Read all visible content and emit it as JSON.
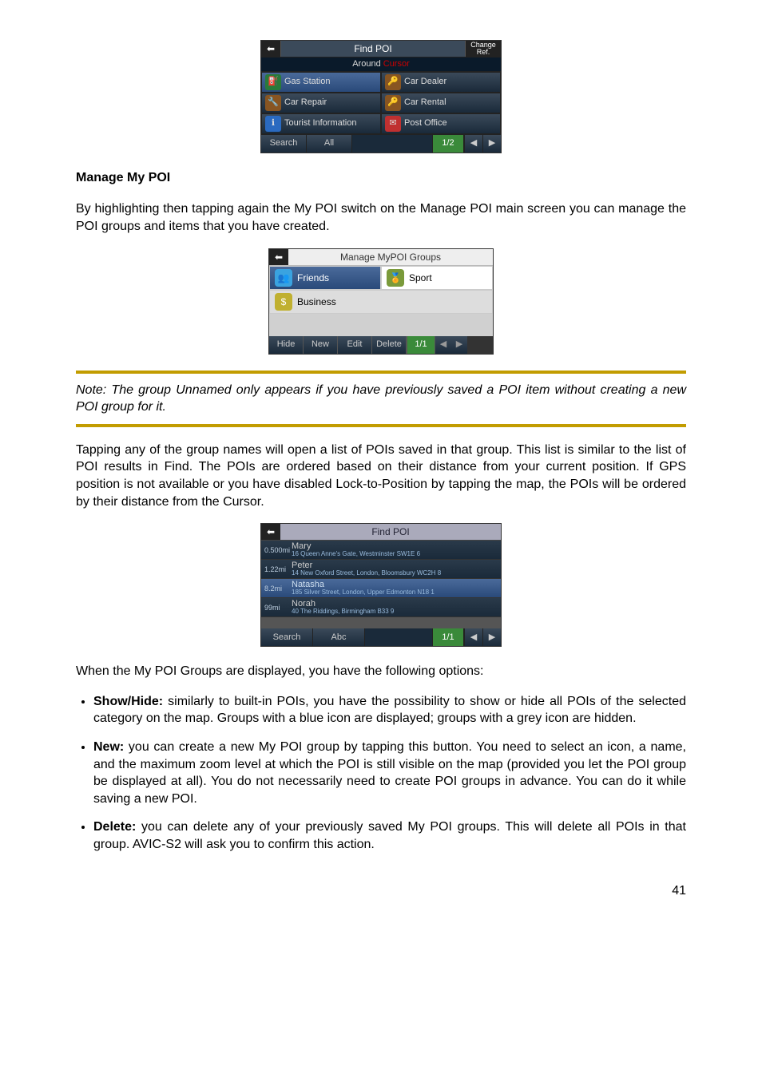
{
  "ss1": {
    "title": "Find POI",
    "change": "Change Ref.",
    "around_prefix": "Around ",
    "around_cursor": "Cursor",
    "cells": [
      {
        "label": "Gas Station",
        "icon_bg": "#2a7a3a",
        "icon_tx": "⛽",
        "selected": true
      },
      {
        "label": "Car Dealer",
        "icon_bg": "#885522",
        "icon_tx": "🔑"
      },
      {
        "label": "Car Repair",
        "icon_bg": "#885522",
        "icon_tx": "🔧"
      },
      {
        "label": "Car Rental",
        "icon_bg": "#885522",
        "icon_tx": "🔑"
      },
      {
        "label": "Tourist Information",
        "icon_bg": "#2a6ac0",
        "icon_tx": "ℹ"
      },
      {
        "label": "Post Office",
        "icon_bg": "#c03030",
        "icon_tx": "✉"
      }
    ],
    "btn_search": "Search",
    "btn_all": "All",
    "pager": "1/2"
  },
  "heading": "Manage My POI",
  "para1": "By highlighting then tapping again the My POI switch on the Manage POI main screen you can manage the POI groups and items that you have created.",
  "ss2": {
    "title": "Manage MyPOI Groups",
    "rows": [
      [
        {
          "label": "Friends",
          "cls": "dark",
          "ico_bg": "#3aa3e0",
          "ico_tx": "👥"
        },
        {
          "label": "Sport",
          "cls": "",
          "ico_bg": "#7a9a3a",
          "ico_tx": "🏅"
        }
      ],
      [
        {
          "label": "Business",
          "cls": "wide",
          "ico_bg": "#c0b030",
          "ico_tx": "$"
        }
      ]
    ],
    "bottom": [
      "Hide",
      "New",
      "Edit",
      "Delete"
    ],
    "pager": "1/1"
  },
  "note": "Note: The group Unnamed only appears if you have previously saved a POI item without creating a new POI group for it.",
  "para2": "Tapping any of the group names will open a list of POIs saved in that group. This list is similar to the list of POI results in Find. The POIs are ordered based on their distance from your current position. If GPS position is not available or you have disabled Lock-to-Position by tapping the map, the POIs will be ordered by their distance from the Cursor.",
  "ss3": {
    "title": "Find POI",
    "rows": [
      {
        "dist": "0.500mi",
        "name": "Mary",
        "addr": "16 Queen Anne's Gate, Westminster SW1E 6",
        "cls": "dark"
      },
      {
        "dist": "1.22mi",
        "name": "Peter",
        "addr": "14 New Oxford Street, London, Bloomsbury WC2H 8",
        "cls": "dark"
      },
      {
        "dist": "8.2mi",
        "name": "Natasha",
        "addr": "185 Silver Street, London, Upper Edmonton N18 1",
        "cls": "sel"
      },
      {
        "dist": "99mi",
        "name": "Norah",
        "addr": "40 The Riddings, Birmingham B33 9",
        "cls": "dark"
      }
    ],
    "btn_search": "Search",
    "btn_abc": "Abc",
    "pager": "1/1"
  },
  "para3": "When the My POI Groups are displayed, you have the following options:",
  "b1_lead": "Show/Hide:",
  "b1_rest": " similarly to built-in POIs, you have the possibility to show or hide all POIs of the selected category on the map. Groups with a blue icon are displayed; groups with a grey icon are hidden.",
  "b2_lead": "New:",
  "b2_rest": " you can create a new My POI group by tapping this button. You need to select an icon, a name, and the maximum zoom level at which the POI is still visible on the map (provided you let the POI group be displayed at all). You do not necessarily need to create POI groups in advance. You can do it while saving a new POI.",
  "b3_lead": "Delete:",
  "b3_rest": " you can delete any of your previously saved My POI groups. This will delete all POIs in that group. AVIC-S2 will ask you to confirm this action.",
  "page_number": "41"
}
